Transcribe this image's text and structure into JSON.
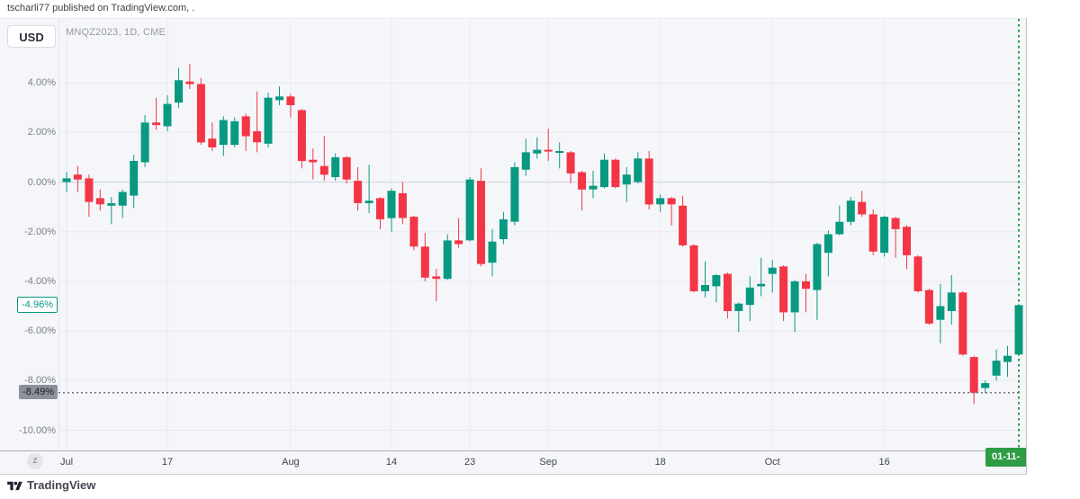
{
  "attribution": "tscharli77 published on TradingView.com, .",
  "toolbar": {
    "currency_button": "USD"
  },
  "chart": {
    "symbol_title": "MNQZ2023, 1D, CME",
    "zoom_out_button": "z",
    "price_scale": {
      "tick_values": [
        4,
        2,
        0,
        -2,
        -4,
        -6,
        -8,
        -10
      ],
      "tick_labels": [
        "4.00%",
        "2.00%",
        "0.00%",
        "-2.00%",
        "-4.00%",
        "-6.00%",
        "-8.00%",
        "-10.00%"
      ],
      "last_price_label": {
        "text": "-4.96%",
        "value": -4.96,
        "color": "#089981"
      },
      "prev_close_label": {
        "text": "-8.49%",
        "value": -8.49,
        "color": "#8d9099"
      }
    },
    "time_scale": {
      "current_date_label": "01-11-"
    }
  },
  "footer": {
    "logo_text": "TradingView"
  },
  "chart_data": {
    "type": "candlestick",
    "title": "MNQZ2023, 1D, CME",
    "unit": "percent change",
    "up_color": "#089981",
    "down_color": "#f23645",
    "marker_line_color": "#2d9c44",
    "ylim": [
      -10.8,
      6.6
    ],
    "grid": true,
    "prev_close_level": -8.49,
    "last_close": -4.96,
    "x_ticks": [
      {
        "label": "Jul",
        "index": 0
      },
      {
        "label": "17",
        "index": 9
      },
      {
        "label": "Aug",
        "index": 20
      },
      {
        "label": "14",
        "index": 29
      },
      {
        "label": "23",
        "index": 36
      },
      {
        "label": "Sep",
        "index": 43
      },
      {
        "label": "18",
        "index": 53
      },
      {
        "label": "Oct",
        "index": 63
      },
      {
        "label": "16",
        "index": 73
      }
    ],
    "candles_format": [
      "open",
      "high",
      "low",
      "close"
    ],
    "candles": [
      [
        0.0,
        0.4,
        -0.4,
        0.15
      ],
      [
        0.3,
        0.65,
        -0.4,
        0.1
      ],
      [
        0.15,
        0.3,
        -1.4,
        -0.8
      ],
      [
        -0.65,
        -0.3,
        -1.15,
        -0.9
      ],
      [
        -0.95,
        -0.6,
        -1.7,
        -0.85
      ],
      [
        -0.95,
        -0.3,
        -1.45,
        -0.4
      ],
      [
        -0.55,
        1.1,
        -1.05,
        0.85
      ],
      [
        0.8,
        2.7,
        0.6,
        2.4
      ],
      [
        2.4,
        3.4,
        2.1,
        2.3
      ],
      [
        2.25,
        3.5,
        2.05,
        3.15
      ],
      [
        3.2,
        4.6,
        3.0,
        4.1
      ],
      [
        4.05,
        4.75,
        3.75,
        3.95
      ],
      [
        3.95,
        4.2,
        1.5,
        1.6
      ],
      [
        1.75,
        2.4,
        1.25,
        1.4
      ],
      [
        1.5,
        2.65,
        1.05,
        2.5
      ],
      [
        1.5,
        2.6,
        1.4,
        2.45
      ],
      [
        2.65,
        2.75,
        1.25,
        1.85
      ],
      [
        2.05,
        3.65,
        1.2,
        1.6
      ],
      [
        1.55,
        3.6,
        1.4,
        3.4
      ],
      [
        3.3,
        3.85,
        3.1,
        3.45
      ],
      [
        3.45,
        3.55,
        2.6,
        3.1
      ],
      [
        2.9,
        2.95,
        0.55,
        0.85
      ],
      [
        0.9,
        1.35,
        0.1,
        0.8
      ],
      [
        0.65,
        1.85,
        0.05,
        0.3
      ],
      [
        0.2,
        1.15,
        0.05,
        1.0
      ],
      [
        1.0,
        1.05,
        -0.05,
        0.1
      ],
      [
        0.05,
        0.6,
        -1.15,
        -0.85
      ],
      [
        -0.85,
        0.7,
        -1.25,
        -0.75
      ],
      [
        -0.65,
        -0.6,
        -1.9,
        -1.5
      ],
      [
        -1.45,
        -0.25,
        -2.0,
        -0.35
      ],
      [
        -0.45,
        0.0,
        -1.7,
        -1.45
      ],
      [
        -1.4,
        -1.35,
        -2.75,
        -2.6
      ],
      [
        -2.6,
        -2.05,
        -4.0,
        -3.85
      ],
      [
        -3.8,
        -3.5,
        -4.8,
        -3.9
      ],
      [
        -3.9,
        -2.1,
        -3.95,
        -2.35
      ],
      [
        -2.35,
        -1.45,
        -2.65,
        -2.5
      ],
      [
        -2.35,
        0.2,
        -2.4,
        0.1
      ],
      [
        0.05,
        0.55,
        -3.4,
        -3.3
      ],
      [
        -3.25,
        -1.9,
        -3.8,
        -2.4
      ],
      [
        -2.3,
        -1.2,
        -2.5,
        -1.5
      ],
      [
        -1.6,
        0.8,
        -1.75,
        0.6
      ],
      [
        0.5,
        1.75,
        0.25,
        1.2
      ],
      [
        1.15,
        1.8,
        0.95,
        1.3
      ],
      [
        1.3,
        2.15,
        0.85,
        1.25
      ],
      [
        1.2,
        1.6,
        0.55,
        1.25
      ],
      [
        1.2,
        1.25,
        -0.05,
        0.35
      ],
      [
        0.4,
        0.45,
        -1.15,
        -0.3
      ],
      [
        -0.3,
        0.45,
        -0.65,
        -0.15
      ],
      [
        -0.2,
        1.15,
        -0.25,
        0.9
      ],
      [
        0.9,
        0.95,
        -0.25,
        -0.2
      ],
      [
        -0.1,
        0.6,
        -0.8,
        0.3
      ],
      [
        0.0,
        1.2,
        -0.05,
        0.95
      ],
      [
        0.95,
        1.25,
        -1.1,
        -0.9
      ],
      [
        -0.9,
        -0.5,
        -1.2,
        -0.65
      ],
      [
        -0.65,
        -0.6,
        -1.75,
        -0.9
      ],
      [
        -0.95,
        -0.55,
        -2.6,
        -2.55
      ],
      [
        -2.55,
        -2.5,
        -4.45,
        -4.4
      ],
      [
        -4.4,
        -3.2,
        -4.65,
        -4.15
      ],
      [
        -4.2,
        -3.7,
        -4.85,
        -3.75
      ],
      [
        -3.7,
        -3.65,
        -5.5,
        -5.2
      ],
      [
        -5.2,
        -4.85,
        -6.05,
        -4.9
      ],
      [
        -4.95,
        -3.8,
        -5.6,
        -4.25
      ],
      [
        -4.2,
        -3.05,
        -4.6,
        -4.1
      ],
      [
        -3.7,
        -3.15,
        -4.45,
        -3.45
      ],
      [
        -3.4,
        -3.35,
        -5.6,
        -5.25
      ],
      [
        -5.25,
        -3.95,
        -6.05,
        -4.0
      ],
      [
        -4.0,
        -3.7,
        -5.25,
        -4.3
      ],
      [
        -4.35,
        -2.45,
        -5.55,
        -2.5
      ],
      [
        -2.85,
        -1.95,
        -3.8,
        -2.1
      ],
      [
        -2.1,
        -0.95,
        -2.15,
        -1.6
      ],
      [
        -1.6,
        -0.6,
        -1.75,
        -0.75
      ],
      [
        -0.8,
        -0.35,
        -1.4,
        -1.3
      ],
      [
        -1.3,
        -1.1,
        -2.95,
        -2.8
      ],
      [
        -2.85,
        -1.35,
        -3.0,
        -1.4
      ],
      [
        -1.45,
        -1.4,
        -3.05,
        -1.9
      ],
      [
        -1.8,
        -1.75,
        -3.5,
        -2.95
      ],
      [
        -3.0,
        -2.95,
        -4.45,
        -4.4
      ],
      [
        -4.35,
        -4.3,
        -5.75,
        -5.7
      ],
      [
        -5.55,
        -4.1,
        -6.5,
        -5.0
      ],
      [
        -5.2,
        -3.75,
        -5.75,
        -4.45
      ],
      [
        -4.45,
        -4.4,
        -7.0,
        -6.95
      ],
      [
        -7.05,
        -7.0,
        -8.95,
        -8.49
      ],
      [
        -8.3,
        -8.0,
        -8.5,
        -8.1
      ],
      [
        -7.8,
        -6.75,
        -8.0,
        -7.2
      ],
      [
        -7.25,
        -6.6,
        -7.85,
        -7.0
      ],
      [
        -6.95,
        -4.9,
        -7.0,
        -4.96
      ]
    ]
  }
}
